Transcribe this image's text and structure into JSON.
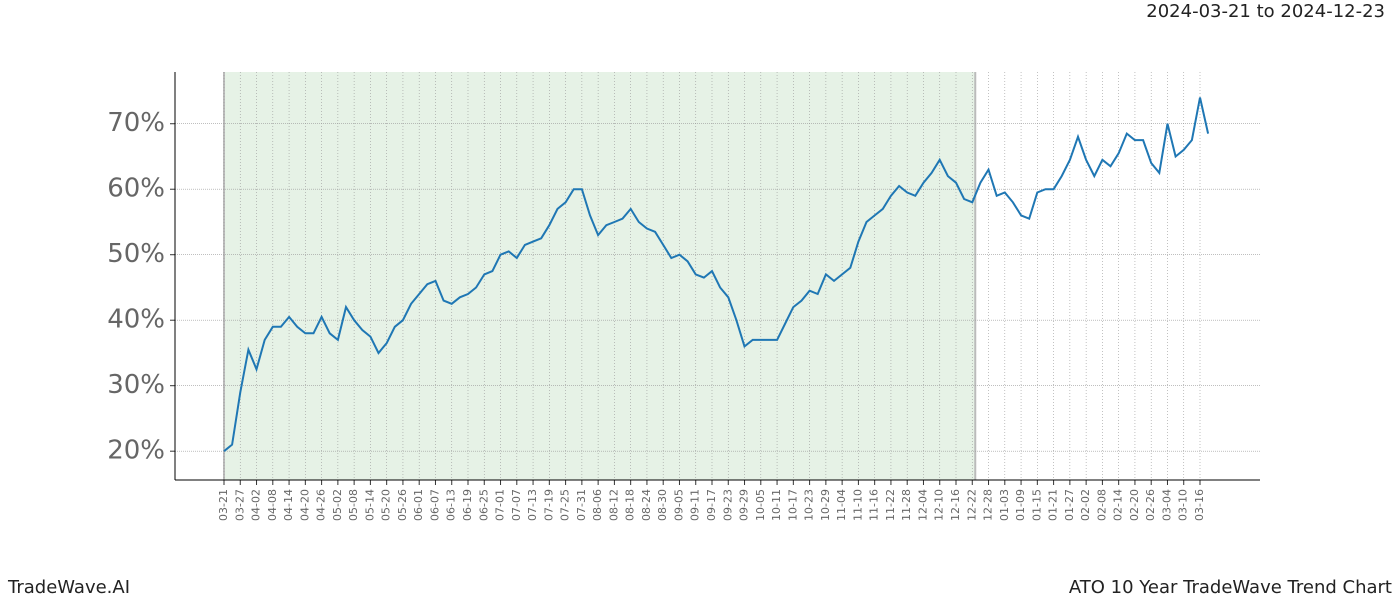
{
  "chart_data": {
    "type": "line",
    "title": "ATO 10 Year TradeWave Trend Chart",
    "subtitle": "2024-03-21 to 2024-12-23",
    "brand": "TradeWave.AI",
    "categories": [
      "03-21",
      null,
      "03-27",
      null,
      "04-02",
      null,
      "04-08",
      null,
      "04-14",
      null,
      "04-20",
      null,
      "04-26",
      null,
      "05-02",
      null,
      "05-08",
      null,
      "05-14",
      null,
      "05-20",
      null,
      "05-26",
      null,
      "06-01",
      null,
      "06-07",
      null,
      "06-13",
      null,
      "06-19",
      null,
      "06-25",
      null,
      "07-01",
      null,
      "07-07",
      null,
      "07-13",
      null,
      "07-19",
      null,
      "07-25",
      null,
      "07-31",
      null,
      "08-06",
      null,
      "08-12",
      null,
      "08-18",
      null,
      "08-24",
      null,
      "08-30",
      null,
      "09-05",
      null,
      "09-11",
      null,
      "09-17",
      null,
      "09-23",
      null,
      "09-29",
      null,
      "10-05",
      null,
      "10-11",
      null,
      "10-17",
      null,
      "10-23",
      null,
      "10-29",
      null,
      "11-04",
      null,
      "11-10",
      null,
      "11-16",
      null,
      "11-22",
      null,
      "11-28",
      null,
      "12-04",
      null,
      "12-10",
      null,
      "12-16",
      null,
      "12-22",
      null,
      "12-28",
      null,
      "01-03",
      null,
      "01-09",
      null,
      "01-15",
      null,
      "01-21",
      null,
      "01-27",
      null,
      "02-02",
      null,
      "02-08",
      null,
      "02-14",
      null,
      "02-20",
      null,
      "02-26",
      null,
      "03-04",
      null,
      "03-10",
      null,
      "03-16",
      null
    ],
    "series": [
      {
        "name": "ATO",
        "color": "#1f77b4",
        "values": [
          20,
          21,
          29,
          35.5,
          32.5,
          37,
          39,
          39,
          40.5,
          39,
          38,
          38,
          40.5,
          38,
          37,
          42,
          40,
          38.5,
          37.5,
          35,
          36.5,
          39,
          40,
          42.5,
          44,
          45.5,
          46,
          43,
          42.5,
          43.5,
          44,
          45,
          47,
          47.5,
          50,
          50.5,
          49.5,
          51.5,
          52,
          52.5,
          54.5,
          57,
          58,
          60,
          60,
          56,
          53,
          54.5,
          55,
          55.5,
          57,
          55,
          54,
          53.5,
          51.5,
          49.5,
          50,
          49,
          47,
          46.5,
          47.5,
          45,
          43.5,
          40,
          36,
          37,
          37,
          37,
          37,
          39.5,
          42,
          43,
          44.5,
          44,
          47,
          46,
          47,
          48,
          52,
          55,
          56,
          57,
          59,
          60.5,
          59.5,
          59,
          61,
          62.5,
          64.5,
          62,
          61,
          58.5,
          58,
          61,
          63,
          59,
          59.5,
          58,
          56,
          55.5,
          59.5,
          60,
          60,
          62,
          64.5,
          68,
          64.5,
          62,
          64.5,
          63.5,
          65.5,
          68.5,
          67.5,
          67.5,
          64,
          62.5,
          70,
          65,
          66,
          67.5,
          74,
          68.5
        ]
      }
    ],
    "ylim": [
      15.6,
      77.9
    ],
    "yticks": [
      {
        "value": 20,
        "label": "20%"
      },
      {
        "value": 30,
        "label": "30%"
      },
      {
        "value": 40,
        "label": "40%"
      },
      {
        "value": 50,
        "label": "50%"
      },
      {
        "value": 60,
        "label": "60%"
      },
      {
        "value": 70,
        "label": "70%"
      }
    ],
    "grid": true
  }
}
